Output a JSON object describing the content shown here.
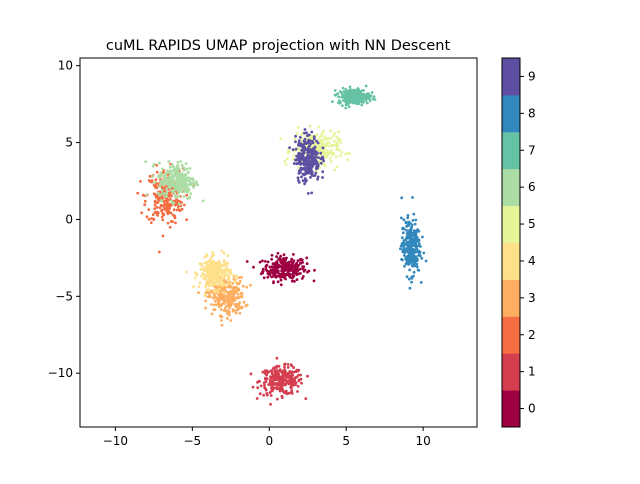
{
  "chart_data": {
    "type": "scatter",
    "title": "cuML RAPIDS UMAP projection with NN Descent",
    "xlabel": "",
    "ylabel": "",
    "xlim": [
      -12.3,
      13.5
    ],
    "ylim": [
      -13.5,
      10.5
    ],
    "xticks": [
      -10,
      -5,
      0,
      5,
      10
    ],
    "yticks": [
      -10,
      -5,
      0,
      5,
      10
    ],
    "grid": false,
    "colorbar": {
      "range": [
        -0.5,
        9.5
      ],
      "ticks": [
        0,
        1,
        2,
        3,
        4,
        5,
        6,
        7,
        8,
        9
      ],
      "colors": [
        "#9e0142",
        "#d53e4f",
        "#f46d43",
        "#fdae61",
        "#fee08b",
        "#e6f598",
        "#abdda4",
        "#66c2a5",
        "#3288bd",
        "#5e4fa2"
      ]
    },
    "series": [
      {
        "class": 0,
        "color": "#9e0142",
        "centroid": [
          1.0,
          -3.2
        ],
        "spread": [
          1.4,
          0.8
        ]
      },
      {
        "class": 1,
        "color": "#d53e4f",
        "centroid": [
          0.8,
          -10.5
        ],
        "spread": [
          1.4,
          0.9
        ]
      },
      {
        "class": 2,
        "color": "#f46d43",
        "centroid": [
          -6.8,
          1.5
        ],
        "spread": [
          1.2,
          1.8
        ]
      },
      {
        "class": 3,
        "color": "#fdae61",
        "centroid": [
          -2.8,
          -5.0
        ],
        "spread": [
          1.2,
          1.2
        ]
      },
      {
        "class": 4,
        "color": "#fee08b",
        "centroid": [
          -3.5,
          -3.5
        ],
        "spread": [
          1.0,
          1.0
        ]
      },
      {
        "class": 5,
        "color": "#e6f598",
        "centroid": [
          3.0,
          4.5
        ],
        "spread": [
          1.5,
          1.2
        ]
      },
      {
        "class": 6,
        "color": "#abdda4",
        "centroid": [
          -6.0,
          2.5
        ],
        "spread": [
          1.2,
          1.2
        ]
      },
      {
        "class": 7,
        "color": "#66c2a5",
        "centroid": [
          5.5,
          8.0
        ],
        "spread": [
          1.0,
          0.5
        ]
      },
      {
        "class": 8,
        "color": "#3288bd",
        "centroid": [
          9.2,
          -1.8
        ],
        "spread": [
          0.6,
          1.8
        ]
      },
      {
        "class": 9,
        "color": "#5e4fa2",
        "centroid": [
          2.5,
          4.0
        ],
        "spread": [
          0.8,
          1.5
        ]
      }
    ]
  }
}
